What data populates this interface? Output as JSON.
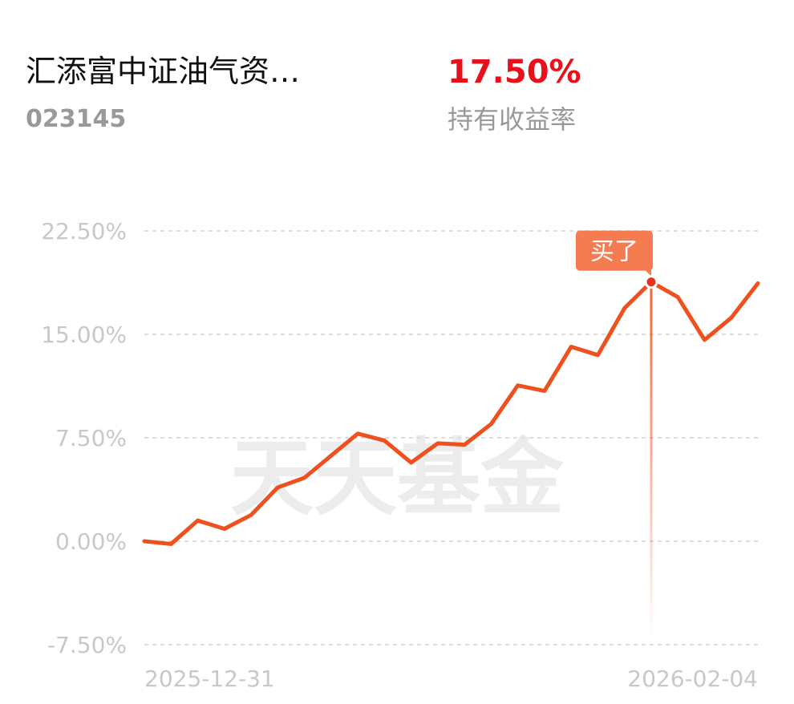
{
  "header": {
    "fund_name": "汇添富中证油气资…",
    "fund_code": "023145",
    "return_value": "17.50%",
    "return_label": "持有收益率"
  },
  "watermark": "天天基金",
  "chart_data": {
    "type": "line",
    "x": [
      "2025-12-31",
      null,
      null,
      null,
      null,
      null,
      null,
      null,
      null,
      null,
      null,
      null,
      null,
      null,
      null,
      null,
      null,
      null,
      null,
      null,
      null,
      null,
      null,
      "2026-02-04"
    ],
    "series": [
      {
        "color": "#f0501e",
        "values": [
          0,
          -0.2,
          1.5,
          0.9,
          1.9,
          3.9,
          4.6,
          6.2,
          7.8,
          7.3,
          5.7,
          7.1,
          7.0,
          8.5,
          11.3,
          10.9,
          14.1,
          13.5,
          16.9,
          18.8,
          17.7,
          14.6,
          16.2,
          18.7
        ]
      }
    ],
    "ylim": [
      -7.5,
      22.5
    ],
    "yticks": [
      {
        "value": -7.5,
        "label": "-7.50%"
      },
      {
        "value": 0,
        "label": "0.00%"
      },
      {
        "value": 7.5,
        "label": "7.50%"
      },
      {
        "value": 15,
        "label": "15.00%"
      },
      {
        "value": 22.5,
        "label": "22.50%"
      }
    ],
    "grid": true,
    "annotations": [
      {
        "text": "买了",
        "index": 19
      }
    ]
  }
}
